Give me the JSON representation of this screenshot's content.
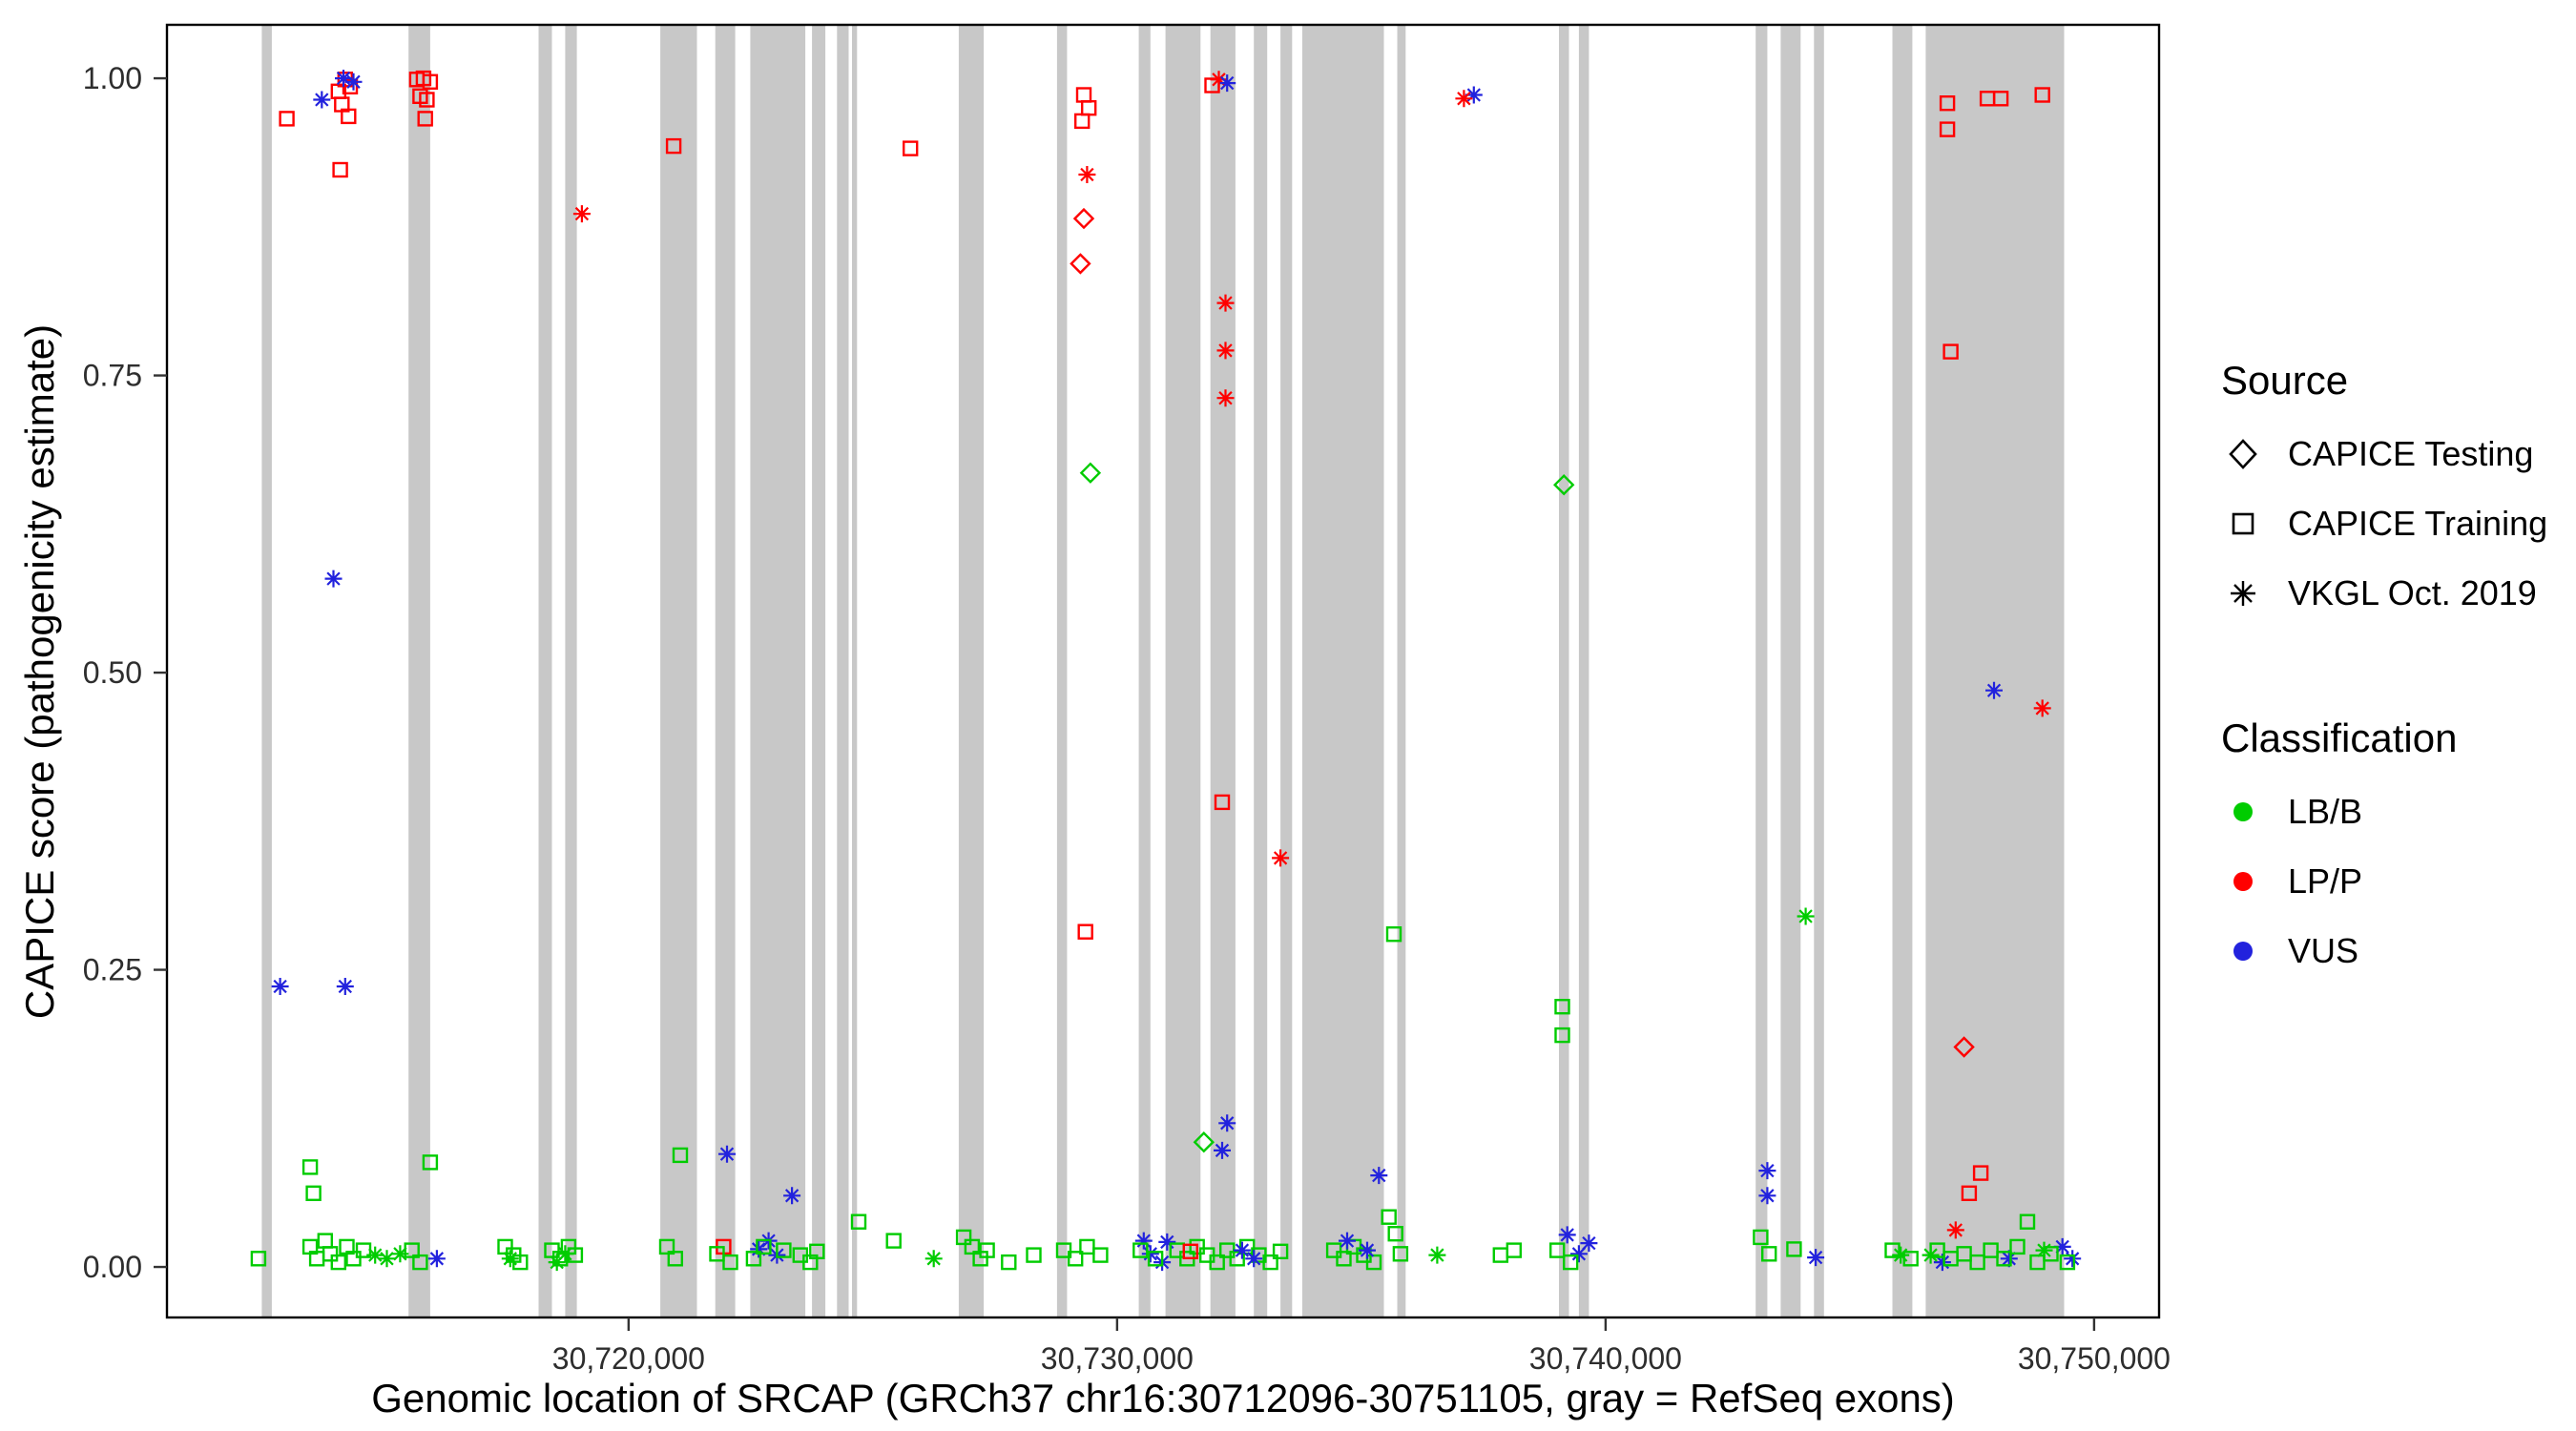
{
  "chart_data": {
    "type": "scatter",
    "title": "",
    "xlabel": "Genomic location of SRCAP (GRCh37 chr16:30712096-30751105, gray = RefSeq exons)",
    "ylabel": "CAPICE score (pathogenicity estimate)",
    "xlim": [
      30710550,
      30751330
    ],
    "ylim": [
      -0.0425,
      1.045
    ],
    "x_ticks": [
      {
        "value": 30720000,
        "label": "30,720,000"
      },
      {
        "value": 30730000,
        "label": "30,730,000"
      },
      {
        "value": 30740000,
        "label": "30,740,000"
      },
      {
        "value": 30750000,
        "label": "30,750,000"
      }
    ],
    "y_ticks": [
      {
        "value": 0.0,
        "label": "0.00"
      },
      {
        "value": 0.25,
        "label": "0.25"
      },
      {
        "value": 0.5,
        "label": "0.50"
      },
      {
        "value": 0.75,
        "label": "0.75"
      },
      {
        "value": 1.0,
        "label": "1.00"
      }
    ],
    "colors": {
      "exon": "#C8C8C8",
      "border": "#000000",
      "tick": "#333333"
    },
    "source_legend": {
      "title": "Source",
      "items": [
        {
          "code": "te",
          "label": "CAPICE Testing",
          "marker": "diamond"
        },
        {
          "code": "tr",
          "label": "CAPICE Training",
          "marker": "square"
        },
        {
          "code": "vk",
          "label": "VKGL Oct. 2019",
          "marker": "asterisk"
        }
      ]
    },
    "class_legend": {
      "title": "Classification",
      "items": [
        {
          "code": "lbb",
          "label": "LB/B",
          "color": "#00CC00"
        },
        {
          "code": "lpp",
          "label": "LP/P",
          "color": "#FF0000"
        },
        {
          "code": "vus",
          "label": "VUS",
          "color": "#2222DD"
        }
      ]
    },
    "exons": [
      [
        30712491,
        30712696
      ],
      [
        30715495,
        30715938
      ],
      [
        30718157,
        30718430
      ],
      [
        30718703,
        30718942
      ],
      [
        30720649,
        30721399
      ],
      [
        30721775,
        30722184
      ],
      [
        30722491,
        30723618
      ],
      [
        30723754,
        30724027
      ],
      [
        30724266,
        30724505
      ],
      [
        30724573,
        30724676
      ],
      [
        30726758,
        30727270
      ],
      [
        30728771,
        30728976
      ],
      [
        30730444,
        30730683
      ],
      [
        30730990,
        30731707
      ],
      [
        30731911,
        30732423
      ],
      [
        30732799,
        30733072
      ],
      [
        30733345,
        30733584
      ],
      [
        30733789,
        30735461
      ],
      [
        30735734,
        30735905
      ],
      [
        30739045,
        30739250
      ],
      [
        30739454,
        30739659
      ],
      [
        30743072,
        30743311
      ],
      [
        30743584,
        30743993
      ],
      [
        30744266,
        30744471
      ],
      [
        30745871,
        30746280
      ],
      [
        30746553,
        30749386
      ]
    ],
    "points": [
      [
        30712423,
        0.007,
        "tr",
        "lbb"
      ],
      [
        30712867,
        0.236,
        "vk",
        "vus"
      ],
      [
        30713003,
        0.966,
        "tr",
        "lpp"
      ],
      [
        30713481,
        0.017,
        "tr",
        "lbb"
      ],
      [
        30713618,
        0.007,
        "tr",
        "lbb"
      ],
      [
        30713788,
        0.022,
        "tr",
        "lbb"
      ],
      [
        30713891,
        0.011,
        "tr",
        "lbb"
      ],
      [
        30714061,
        0.004,
        "tr",
        "lbb"
      ],
      [
        30714232,
        0.017,
        "tr",
        "lbb"
      ],
      [
        30714369,
        0.007,
        "tr",
        "lbb"
      ],
      [
        30714573,
        0.014,
        "tr",
        "lbb"
      ],
      [
        30713549,
        0.062,
        "tr",
        "lbb"
      ],
      [
        30713481,
        0.084,
        "tr",
        "lbb"
      ],
      [
        30714812,
        0.01,
        "vk",
        "lbb"
      ],
      [
        30715051,
        0.007,
        "vk",
        "lbb"
      ],
      [
        30715324,
        0.011,
        "vk",
        "lbb"
      ],
      [
        30713720,
        0.982,
        "vk",
        "vus"
      ],
      [
        30714061,
        0.989,
        "tr",
        "lpp"
      ],
      [
        30714198,
        0.999,
        "tr",
        "lpp"
      ],
      [
        30714300,
        0.993,
        "tr",
        "lpp"
      ],
      [
        30714130,
        0.978,
        "tr",
        "lpp"
      ],
      [
        30714266,
        0.968,
        "tr",
        "lpp"
      ],
      [
        30714096,
        0.923,
        "tr",
        "lpp"
      ],
      [
        30714164,
        1.0,
        "vk",
        "vus"
      ],
      [
        30714369,
        0.997,
        "vk",
        "vus"
      ],
      [
        30713959,
        0.579,
        "vk",
        "vus"
      ],
      [
        30714198,
        0.236,
        "vk",
        "vus"
      ],
      [
        30716075,
        0.007,
        "vk",
        "vus"
      ],
      [
        30715665,
        0.999,
        "tr",
        "lpp"
      ],
      [
        30715802,
        1.0,
        "tr",
        "lpp"
      ],
      [
        30715938,
        0.997,
        "tr",
        "lpp"
      ],
      [
        30715734,
        0.985,
        "tr",
        "lpp"
      ],
      [
        30715870,
        0.982,
        "tr",
        "lpp"
      ],
      [
        30715836,
        0.966,
        "tr",
        "lpp"
      ],
      [
        30715938,
        0.088,
        "tr",
        "lbb"
      ],
      [
        30715563,
        0.014,
        "tr",
        "lbb"
      ],
      [
        30715734,
        0.004,
        "tr",
        "lbb"
      ],
      [
        30717474,
        0.017,
        "tr",
        "lbb"
      ],
      [
        30717645,
        0.01,
        "tr",
        "lbb"
      ],
      [
        30717782,
        0.004,
        "tr",
        "lbb"
      ],
      [
        30717577,
        0.007,
        "vk",
        "lbb"
      ],
      [
        30718430,
        0.014,
        "tr",
        "lbb"
      ],
      [
        30718601,
        0.007,
        "tr",
        "lbb"
      ],
      [
        30718771,
        0.017,
        "tr",
        "lbb"
      ],
      [
        30718908,
        0.01,
        "tr",
        "lbb"
      ],
      [
        30718532,
        0.004,
        "vk",
        "lbb"
      ],
      [
        30718703,
        0.011,
        "vk",
        "lbb"
      ],
      [
        30719044,
        0.886,
        "vk",
        "lpp"
      ],
      [
        30720922,
        0.943,
        "tr",
        "lpp"
      ],
      [
        30721058,
        0.094,
        "tr",
        "lbb"
      ],
      [
        30720785,
        0.017,
        "tr",
        "lbb"
      ],
      [
        30720956,
        0.007,
        "tr",
        "lbb"
      ],
      [
        30721945,
        0.017,
        "tr",
        "lpp"
      ],
      [
        30722014,
        0.095,
        "vk",
        "vus"
      ],
      [
        30721809,
        0.011,
        "tr",
        "lbb"
      ],
      [
        30722082,
        0.004,
        "tr",
        "lbb"
      ],
      [
        30722662,
        0.015,
        "vk",
        "vus"
      ],
      [
        30722867,
        0.022,
        "vk",
        "vus"
      ],
      [
        30723038,
        0.01,
        "vk",
        "vus"
      ],
      [
        30723345,
        0.06,
        "vk",
        "vus"
      ],
      [
        30722560,
        0.007,
        "tr",
        "lbb"
      ],
      [
        30722765,
        0.017,
        "tr",
        "lbb"
      ],
      [
        30723174,
        0.014,
        "tr",
        "lbb"
      ],
      [
        30723515,
        0.01,
        "tr",
        "lbb"
      ],
      [
        30723720,
        0.004,
        "tr",
        "lbb"
      ],
      [
        30723857,
        0.013,
        "tr",
        "lbb"
      ],
      [
        30724710,
        0.038,
        "tr",
        "lbb"
      ],
      [
        30725427,
        0.022,
        "tr",
        "lbb"
      ],
      [
        30726246,
        0.007,
        "vk",
        "lbb"
      ],
      [
        30725768,
        0.941,
        "tr",
        "lpp"
      ],
      [
        30726860,
        0.025,
        "tr",
        "lbb"
      ],
      [
        30727031,
        0.017,
        "tr",
        "lbb"
      ],
      [
        30727201,
        0.007,
        "tr",
        "lbb"
      ],
      [
        30727338,
        0.014,
        "tr",
        "lbb"
      ],
      [
        30727782,
        0.004,
        "tr",
        "lbb"
      ],
      [
        30728294,
        0.01,
        "tr",
        "lbb"
      ],
      [
        30728908,
        0.014,
        "tr",
        "lbb"
      ],
      [
        30729147,
        0.007,
        "tr",
        "lbb"
      ],
      [
        30729386,
        0.017,
        "tr",
        "lbb"
      ],
      [
        30729659,
        0.01,
        "tr",
        "lbb"
      ],
      [
        30729318,
        0.986,
        "tr",
        "lpp"
      ],
      [
        30729420,
        0.975,
        "tr",
        "lpp"
      ],
      [
        30729283,
        0.964,
        "tr",
        "lpp"
      ],
      [
        30729386,
        0.919,
        "vk",
        "lpp"
      ],
      [
        30729318,
        0.882,
        "te",
        "lpp"
      ],
      [
        30729249,
        0.844,
        "te",
        "lpp"
      ],
      [
        30729454,
        0.668,
        "te",
        "lbb"
      ],
      [
        30729352,
        0.282,
        "tr",
        "lpp"
      ],
      [
        30730546,
        0.022,
        "vk",
        "vus"
      ],
      [
        30730683,
        0.011,
        "vk",
        "vus"
      ],
      [
        30730922,
        0.004,
        "vk",
        "vus"
      ],
      [
        30730478,
        0.014,
        "tr",
        "lbb"
      ],
      [
        30730785,
        0.007,
        "tr",
        "lbb"
      ],
      [
        30731024,
        0.021,
        "vk",
        "vus"
      ],
      [
        30731775,
        0.105,
        "te",
        "lbb"
      ],
      [
        30732253,
        0.121,
        "vk",
        "vus"
      ],
      [
        30732150,
        0.098,
        "vk",
        "vus"
      ],
      [
        30732082,
        0.999,
        "vk",
        "lpp"
      ],
      [
        30732253,
        0.996,
        "vk",
        "vus"
      ],
      [
        30731946,
        0.994,
        "tr",
        "lpp"
      ],
      [
        30732219,
        0.811,
        "vk",
        "lpp"
      ],
      [
        30732219,
        0.771,
        "vk",
        "lpp"
      ],
      [
        30732219,
        0.731,
        "vk",
        "lpp"
      ],
      [
        30732150,
        0.391,
        "tr",
        "lpp"
      ],
      [
        30733345,
        0.344,
        "vk",
        "lpp"
      ],
      [
        30731229,
        0.014,
        "tr",
        "lbb"
      ],
      [
        30731434,
        0.007,
        "tr",
        "lbb"
      ],
      [
        30731638,
        0.017,
        "tr",
        "lbb"
      ],
      [
        30731843,
        0.01,
        "tr",
        "lbb"
      ],
      [
        30732048,
        0.004,
        "tr",
        "lbb"
      ],
      [
        30732253,
        0.014,
        "tr",
        "lbb"
      ],
      [
        30732458,
        0.007,
        "tr",
        "lbb"
      ],
      [
        30732662,
        0.017,
        "tr",
        "lbb"
      ],
      [
        30732901,
        0.01,
        "tr",
        "lbb"
      ],
      [
        30733140,
        0.004,
        "tr",
        "lbb"
      ],
      [
        30733345,
        0.013,
        "tr",
        "lbb"
      ],
      [
        30731502,
        0.013,
        "tr",
        "lpp"
      ],
      [
        30732560,
        0.014,
        "vk",
        "vus"
      ],
      [
        30732799,
        0.007,
        "vk",
        "vus"
      ],
      [
        30734437,
        0.014,
        "tr",
        "lbb"
      ],
      [
        30734642,
        0.007,
        "tr",
        "lbb"
      ],
      [
        30734847,
        0.017,
        "tr",
        "lbb"
      ],
      [
        30735051,
        0.01,
        "tr",
        "lbb"
      ],
      [
        30735256,
        0.004,
        "tr",
        "lbb"
      ],
      [
        30734710,
        0.022,
        "vk",
        "vus"
      ],
      [
        30735120,
        0.014,
        "vk",
        "vus"
      ],
      [
        30735359,
        0.077,
        "vk",
        "vus"
      ],
      [
        30735666,
        0.28,
        "tr",
        "lbb"
      ],
      [
        30735563,
        0.042,
        "tr",
        "lbb"
      ],
      [
        30735700,
        0.028,
        "tr",
        "lbb"
      ],
      [
        30735802,
        0.011,
        "tr",
        "lbb"
      ],
      [
        30736553,
        0.01,
        "vk",
        "lbb"
      ],
      [
        30737304,
        0.986,
        "vk",
        "vus"
      ],
      [
        30737099,
        0.983,
        "vk",
        "lpp"
      ],
      [
        30737850,
        0.01,
        "tr",
        "lbb"
      ],
      [
        30738123,
        0.014,
        "tr",
        "lbb"
      ],
      [
        30739147,
        0.658,
        "te",
        "lbb"
      ],
      [
        30739113,
        0.219,
        "tr",
        "lbb"
      ],
      [
        30739113,
        0.195,
        "tr",
        "lbb"
      ],
      [
        30739215,
        0.027,
        "vk",
        "vus"
      ],
      [
        30739454,
        0.011,
        "vk",
        "vus"
      ],
      [
        30739659,
        0.02,
        "vk",
        "vus"
      ],
      [
        30739011,
        0.014,
        "tr",
        "lbb"
      ],
      [
        30739284,
        0.004,
        "tr",
        "lbb"
      ],
      [
        30743311,
        0.081,
        "vk",
        "vus"
      ],
      [
        30743311,
        0.06,
        "vk",
        "vus"
      ],
      [
        30743174,
        0.025,
        "tr",
        "lbb"
      ],
      [
        30743345,
        0.011,
        "tr",
        "lbb"
      ],
      [
        30744096,
        0.295,
        "vk",
        "lbb"
      ],
      [
        30744300,
        0.008,
        "vk",
        "vus"
      ],
      [
        30743857,
        0.015,
        "tr",
        "lbb"
      ],
      [
        30746041,
        0.01,
        "vk",
        "lbb"
      ],
      [
        30745871,
        0.014,
        "tr",
        "lbb"
      ],
      [
        30746246,
        0.007,
        "tr",
        "lbb"
      ],
      [
        30746997,
        0.979,
        "tr",
        "lpp"
      ],
      [
        30746997,
        0.957,
        "tr",
        "lpp"
      ],
      [
        30747816,
        0.983,
        "tr",
        "lpp"
      ],
      [
        30748089,
        0.983,
        "tr",
        "lpp"
      ],
      [
        30748942,
        0.986,
        "tr",
        "lpp"
      ],
      [
        30747065,
        0.77,
        "tr",
        "lpp"
      ],
      [
        30747952,
        0.485,
        "vk",
        "vus"
      ],
      [
        30748942,
        0.47,
        "vk",
        "lpp"
      ],
      [
        30747338,
        0.185,
        "te",
        "lpp"
      ],
      [
        30747679,
        0.079,
        "tr",
        "lpp"
      ],
      [
        30747441,
        0.062,
        "tr",
        "lpp"
      ],
      [
        30747167,
        0.031,
        "vk",
        "lpp"
      ],
      [
        30746894,
        0.004,
        "vk",
        "vus"
      ],
      [
        30748260,
        0.007,
        "vk",
        "vus"
      ],
      [
        30749352,
        0.017,
        "vk",
        "vus"
      ],
      [
        30749556,
        0.007,
        "vk",
        "vus"
      ],
      [
        30746792,
        0.014,
        "tr",
        "lbb"
      ],
      [
        30747065,
        0.007,
        "tr",
        "lbb"
      ],
      [
        30747338,
        0.011,
        "tr",
        "lbb"
      ],
      [
        30747611,
        0.004,
        "tr",
        "lbb"
      ],
      [
        30747884,
        0.014,
        "tr",
        "lbb"
      ],
      [
        30748157,
        0.007,
        "tr",
        "lbb"
      ],
      [
        30748430,
        0.017,
        "tr",
        "lbb"
      ],
      [
        30748635,
        0.038,
        "tr",
        "lbb"
      ],
      [
        30748840,
        0.004,
        "tr",
        "lbb"
      ],
      [
        30749113,
        0.011,
        "tr",
        "lbb"
      ],
      [
        30749454,
        0.004,
        "tr",
        "lbb"
      ],
      [
        30746655,
        0.01,
        "vk",
        "lbb"
      ],
      [
        30748976,
        0.014,
        "vk",
        "lbb"
      ]
    ]
  }
}
